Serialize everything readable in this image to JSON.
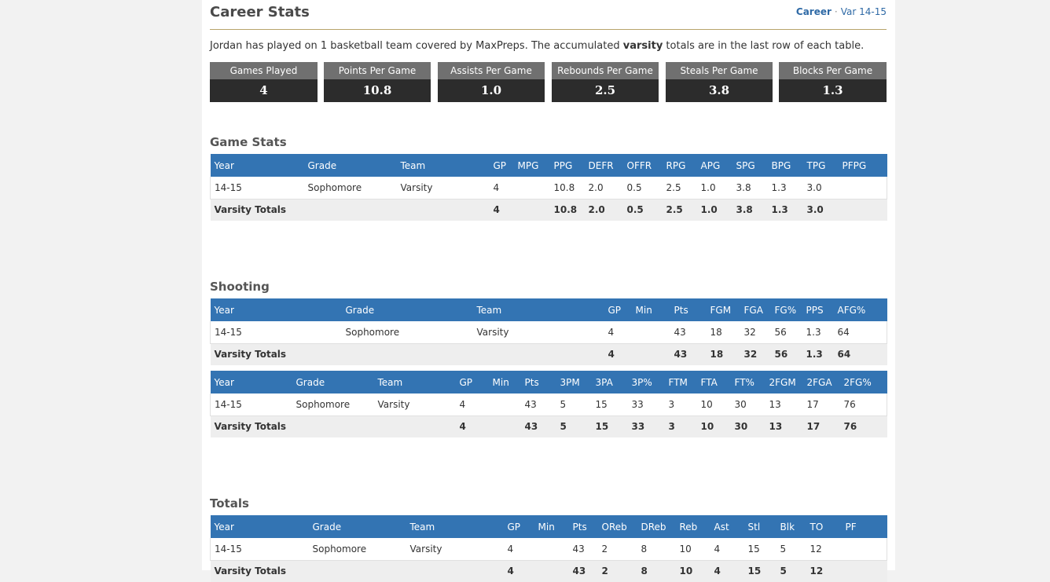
{
  "header": {
    "title": "Career Stats",
    "nav_career": "Career",
    "nav_sep": "·",
    "nav_season": "Var 14-15"
  },
  "intro": {
    "pre": "Jordan has played on 1 basketball team covered by MaxPreps. The accumulated ",
    "bold": "varsity",
    "post": " totals are in the last row of each table."
  },
  "summary": [
    {
      "label": "Games Played",
      "value": "4"
    },
    {
      "label": "Points Per Game",
      "value": "10.8"
    },
    {
      "label": "Assists Per Game",
      "value": "1.0"
    },
    {
      "label": "Rebounds Per Game",
      "value": "2.5"
    },
    {
      "label": "Steals Per Game",
      "value": "3.8"
    },
    {
      "label": "Blocks Per Game",
      "value": "1.3"
    }
  ],
  "game_stats": {
    "title": "Game Stats",
    "headers": [
      "Year",
      "Grade",
      "Team",
      "GP",
      "MPG",
      "PPG",
      "DEFR",
      "OFFR",
      "RPG",
      "APG",
      "SPG",
      "BPG",
      "TPG",
      "PFPG"
    ],
    "row": [
      "14-15",
      "Sophomore",
      "Varsity",
      "4",
      "",
      "10.8",
      "2.0",
      "0.5",
      "2.5",
      "1.0",
      "3.8",
      "1.3",
      "3.0",
      ""
    ],
    "totals": [
      "Varsity Totals",
      "",
      "",
      "4",
      "",
      "10.8",
      "2.0",
      "0.5",
      "2.5",
      "1.0",
      "3.8",
      "1.3",
      "3.0",
      ""
    ]
  },
  "shooting": {
    "title": "Shooting",
    "table1": {
      "headers": [
        "Year",
        "Grade",
        "Team",
        "GP",
        "Min",
        "Pts",
        "FGM",
        "FGA",
        "FG%",
        "PPS",
        "AFG%"
      ],
      "row": [
        "14-15",
        "Sophomore",
        "Varsity",
        "4",
        "",
        "43",
        "18",
        "32",
        "56",
        "1.3",
        "64"
      ],
      "totals": [
        "Varsity Totals",
        "",
        "",
        "4",
        "",
        "43",
        "18",
        "32",
        "56",
        "1.3",
        "64"
      ]
    },
    "table2": {
      "headers": [
        "Year",
        "Grade",
        "Team",
        "GP",
        "Min",
        "Pts",
        "3PM",
        "3PA",
        "3P%",
        "FTM",
        "FTA",
        "FT%",
        "2FGM",
        "2FGA",
        "2FG%"
      ],
      "row": [
        "14-15",
        "Sophomore",
        "Varsity",
        "4",
        "",
        "43",
        "5",
        "15",
        "33",
        "3",
        "10",
        "30",
        "13",
        "17",
        "76"
      ],
      "totals": [
        "Varsity Totals",
        "",
        "",
        "4",
        "",
        "43",
        "5",
        "15",
        "33",
        "3",
        "10",
        "30",
        "13",
        "17",
        "76"
      ]
    }
  },
  "totals": {
    "title": "Totals",
    "headers": [
      "Year",
      "Grade",
      "Team",
      "GP",
      "Min",
      "Pts",
      "OReb",
      "DReb",
      "Reb",
      "Ast",
      "Stl",
      "Blk",
      "TO",
      "PF"
    ],
    "row": [
      "14-15",
      "Sophomore",
      "Varsity",
      "4",
      "",
      "43",
      "2",
      "8",
      "10",
      "4",
      "15",
      "5",
      "12",
      ""
    ],
    "totals": [
      "Varsity Totals",
      "",
      "",
      "4",
      "",
      "43",
      "2",
      "8",
      "10",
      "4",
      "15",
      "5",
      "12",
      ""
    ]
  }
}
